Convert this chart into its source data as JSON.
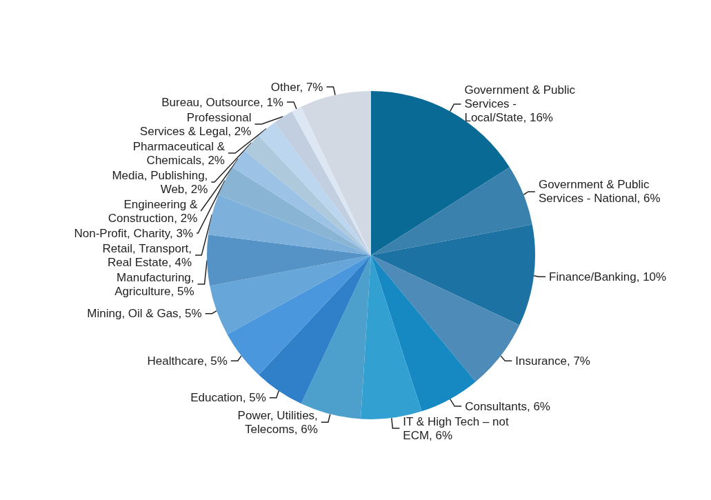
{
  "chart_data": {
    "type": "pie",
    "categories": [
      "Government & Public Services - Local/State",
      "Government & Public Services - National",
      "Finance/Banking",
      "Insurance",
      "Consultants",
      "IT & High Tech – not ECM",
      "Power, Utilities, Telecoms",
      "Education",
      "Healthcare",
      "Mining, Oil & Gas",
      "Manufacturing, Agriculture",
      "Retail, Transport, Real Estate",
      "Non-Profit, Charity",
      "Engineering & Construction",
      "Media, Publishing, Web",
      "Pharmaceutical & Chemicals",
      "Professional Services & Legal",
      "Bureau, Outsource",
      "Other"
    ],
    "values": [
      16,
      6,
      10,
      7,
      6,
      6,
      6,
      5,
      5,
      5,
      5,
      4,
      3,
      2,
      2,
      2,
      2,
      1,
      7
    ],
    "value_labels": [
      "16%",
      "6%",
      "10%",
      "7%",
      "6%",
      "6%",
      "6%",
      "5%",
      "5%",
      "5%",
      "5%",
      "4%",
      "3%",
      "2%",
      "2%",
      "2%",
      "2%",
      "1%",
      "7%"
    ],
    "colors": [
      "#0a6a96",
      "#3a82ad",
      "#1c73a3",
      "#4f8bb8",
      "#1688c2",
      "#33a0d2",
      "#4ea0cc",
      "#2f7fc9",
      "#4b97dd",
      "#66a6d9",
      "#5592c6",
      "#7db0da",
      "#8ab4d4",
      "#9cc3e6",
      "#aec8dc",
      "#bcd6ef",
      "#c2cfe0",
      "#dce7f3",
      "#d2d9e3"
    ],
    "legend": false
  }
}
